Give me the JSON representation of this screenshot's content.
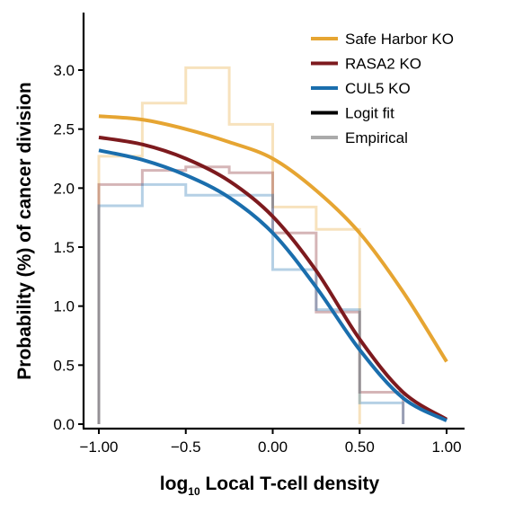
{
  "chart_data": {
    "type": "line",
    "xlabel_main": "log",
    "xlabel_sub": "10",
    "xlabel_rest": " Local T-cell density",
    "ylabel": "Probability (%) of cancer division",
    "xlim": [
      -1.0,
      1.0
    ],
    "ylim": [
      0.0,
      3.45
    ],
    "xticks": [
      -1.0,
      -0.5,
      0.0,
      0.5,
      1.0
    ],
    "xtick_labels": [
      "−1.00",
      "−0.5",
      "0.00",
      "0.50",
      "1.00"
    ],
    "yticks": [
      0.0,
      0.5,
      1.0,
      1.5,
      2.0,
      2.5,
      3.0
    ],
    "ytick_labels": [
      "0.0",
      "0.5",
      "1.0",
      "1.5",
      "2.0",
      "2.5",
      "3.0"
    ],
    "legend_position": "top-right",
    "series": [
      {
        "name": "Safe Harbor KO",
        "color": "#E6A532",
        "fit": {
          "x": [
            -1.0,
            -0.75,
            -0.5,
            -0.25,
            0.0,
            0.25,
            0.5,
            0.75,
            1.0
          ],
          "y": [
            2.61,
            2.58,
            2.5,
            2.39,
            2.25,
            1.98,
            1.62,
            1.12,
            0.53
          ]
        },
        "empirical": {
          "edges": [
            -1.0,
            -0.75,
            -0.5,
            -0.25,
            0.0,
            0.25,
            0.5
          ],
          "values": [
            2.27,
            2.72,
            3.02,
            2.54,
            1.84,
            1.65
          ]
        }
      },
      {
        "name": "RASA2 KO",
        "color": "#7D1A1E",
        "fit": {
          "x": [
            -1.0,
            -0.75,
            -0.5,
            -0.25,
            0.0,
            0.25,
            0.5,
            0.75,
            1.0
          ],
          "y": [
            2.43,
            2.37,
            2.25,
            2.06,
            1.76,
            1.3,
            0.72,
            0.27,
            0.04
          ]
        },
        "empirical": {
          "edges": [
            -1.0,
            -0.75,
            -0.5,
            -0.25,
            0.0,
            0.25,
            0.5,
            0.75
          ],
          "values": [
            2.03,
            2.15,
            2.18,
            2.13,
            1.62,
            0.95,
            0.27
          ]
        }
      },
      {
        "name": "CUL5 KO",
        "color": "#1A6EAD",
        "fit": {
          "x": [
            -1.0,
            -0.75,
            -0.5,
            -0.25,
            0.0,
            0.25,
            0.5,
            0.75,
            1.0
          ],
          "y": [
            2.32,
            2.24,
            2.11,
            1.92,
            1.62,
            1.16,
            0.63,
            0.22,
            0.03
          ]
        },
        "empirical": {
          "edges": [
            -1.0,
            -0.75,
            -0.5,
            -0.25,
            0.0,
            0.25,
            0.5,
            0.75
          ],
          "values": [
            1.85,
            2.03,
            1.94,
            1.94,
            1.31,
            0.97,
            0.18
          ]
        }
      }
    ],
    "legend_extra": [
      {
        "name": "Logit fit",
        "color": "#000000"
      },
      {
        "name": "Empirical",
        "color": "#AAAAAA"
      }
    ]
  }
}
